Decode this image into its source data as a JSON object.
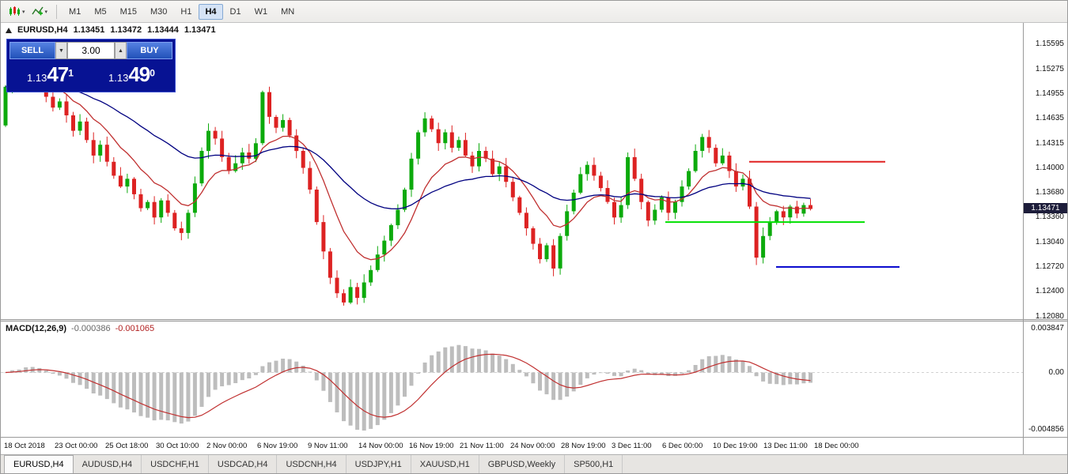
{
  "icons": {
    "caret_down": "▾",
    "spin_down": "▼",
    "spin_up": "▲"
  },
  "toolbar": {
    "timeframes": [
      "M1",
      "M5",
      "M15",
      "M30",
      "H1",
      "H4",
      "D1",
      "W1",
      "MN"
    ],
    "active_timeframe": "H4"
  },
  "chart": {
    "ohlc": {
      "symbol": "EURUSD,H4",
      "open": "1.13451",
      "high": "1.13472",
      "low": "1.13444",
      "close": "1.13471"
    },
    "trade_widget": {
      "sell_label": "SELL",
      "buy_label": "BUY",
      "volume": "3.00",
      "sell_price": {
        "prefix": "1.13",
        "big": "47",
        "sup": "1"
      },
      "buy_price": {
        "prefix": "1.13",
        "big": "49",
        "sup": "0"
      }
    },
    "price_scale": {
      "labels": [
        "1.15595",
        "1.15275",
        "1.14955",
        "1.14635",
        "1.14315",
        "1.14000",
        "1.13680",
        "1.13360",
        "1.13040",
        "1.12720",
        "1.12400",
        "1.12080"
      ],
      "current": "1.13471"
    }
  },
  "macd": {
    "name": "MACD(12,26,9)",
    "value_main": "-0.000386",
    "value_signal": "-0.001065",
    "scale_top": "0.003847",
    "scale_zero": "0.00",
    "scale_bottom": "-0.004856"
  },
  "bottom_tabs": [
    {
      "label": "EURUSD,H4",
      "active": true
    },
    {
      "label": "AUDUSD,H4",
      "active": false
    },
    {
      "label": "USDCHF,H1",
      "active": false
    },
    {
      "label": "USDCAD,H4",
      "active": false
    },
    {
      "label": "USDCNH,H4",
      "active": false
    },
    {
      "label": "USDJPY,H1",
      "active": false
    },
    {
      "label": "XAUUSD,H1",
      "active": false
    },
    {
      "label": "GBPUSD,Weekly",
      "active": false
    },
    {
      "label": "SP500,H1",
      "active": false
    }
  ],
  "chart_data": {
    "type": "candlestick",
    "symbol": "EURUSD",
    "timeframe": "H4",
    "x_labels": [
      "18 Oct 2018",
      "23 Oct 00:00",
      "25 Oct 18:00",
      "30 Oct 10:00",
      "2 Nov 00:00",
      "6 Nov 19:00",
      "9 Nov 11:00",
      "14 Nov 00:00",
      "16 Nov 19:00",
      "21 Nov 11:00",
      "24 Nov 00:00",
      "28 Nov 19:00",
      "3 Dec 11:00",
      "6 Dec 00:00",
      "10 Dec 19:00",
      "13 Dec 11:00",
      "18 Dec 00:00"
    ],
    "ylim": [
      1.12045,
      1.15875
    ],
    "price_base": 1.1,
    "pip": 0.0001,
    "first_open_pip": 455,
    "closes_pips": [
      505,
      528,
      518,
      535,
      522,
      508,
      492,
      478,
      486,
      468,
      448,
      460,
      436,
      416,
      430,
      408,
      390,
      376,
      386,
      366,
      348,
      356,
      336,
      358,
      342,
      322,
      316,
      342,
      380,
      422,
      448,
      438,
      414,
      396,
      406,
      420,
      412,
      432,
      498,
      466,
      452,
      462,
      442,
      422,
      400,
      372,
      330,
      292,
      258,
      238,
      226,
      246,
      232,
      252,
      268,
      288,
      306,
      326,
      346,
      372,
      412,
      446,
      464,
      450,
      432,
      446,
      426,
      436,
      416,
      402,
      422,
      412,
      392,
      402,
      382,
      362,
      342,
      322,
      302,
      282,
      300,
      270,
      312,
      344,
      368,
      392,
      404,
      390,
      374,
      356,
      336,
      352,
      414,
      386,
      356,
      332,
      346,
      362,
      342,
      356,
      376,
      396,
      422,
      440,
      426,
      406,
      416,
      396,
      376,
      386,
      350,
      284,
      312,
      330,
      344,
      336,
      350,
      341,
      352,
      347
    ],
    "last_ohlc": {
      "open": 1.13451,
      "high": 1.13472,
      "low": 1.13444,
      "close": 1.13471
    },
    "overlays": {
      "ma_fast": {
        "period": 10,
        "color": "#c03030"
      },
      "ma_slow": {
        "period": 34,
        "color": "#000080"
      }
    },
    "hlines": [
      {
        "price": 1.1408,
        "x1": 946,
        "x2": 1118,
        "color": "#e02020"
      },
      {
        "price": 1.133,
        "x1": 840,
        "x2": 1092,
        "color": "#00e000"
      },
      {
        "price": 1.1272,
        "x1": 980,
        "x2": 1136,
        "color": "#0000cc"
      }
    ],
    "indicator": {
      "type": "macd",
      "params": "12,26,9",
      "values": [
        -0.000386,
        -0.001065
      ],
      "ylim": [
        -0.004856,
        0.003847
      ]
    },
    "colors": {
      "up": "#0caa0c",
      "down": "#dd2222",
      "macd_hist": "#bdbdbd",
      "macd_signal": "#c03030"
    }
  }
}
